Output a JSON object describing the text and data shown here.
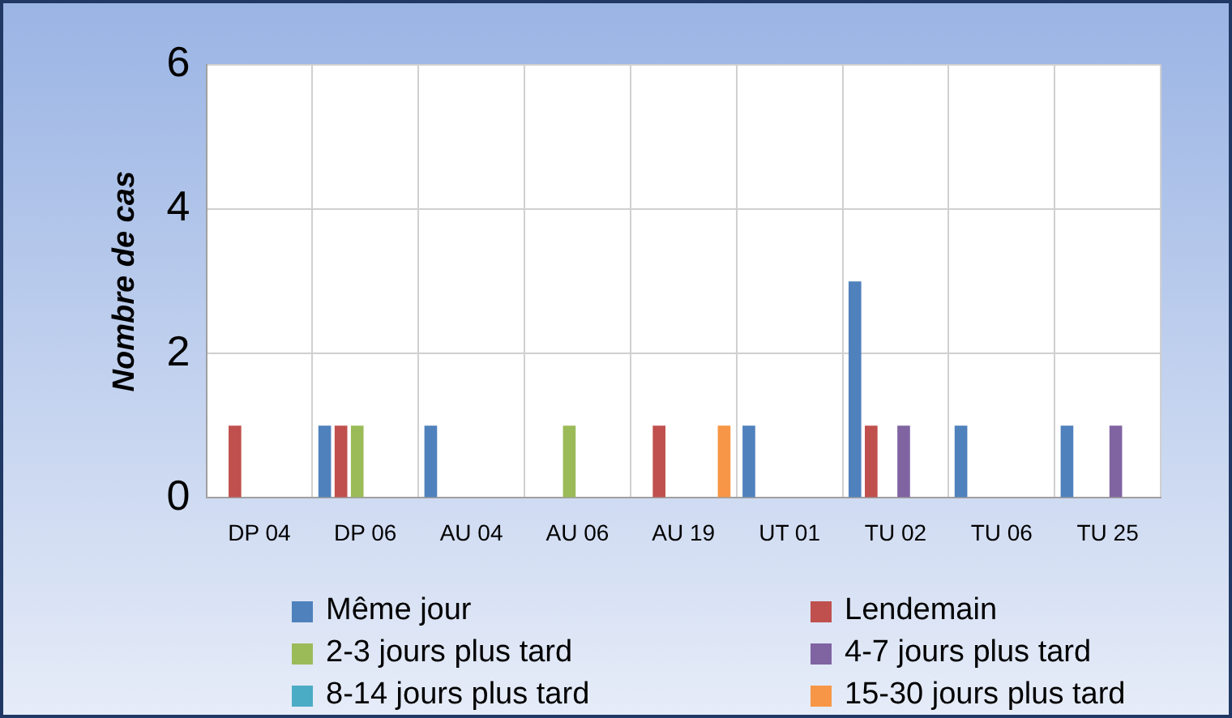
{
  "chart_data": {
    "type": "bar",
    "ylabel": "Nombre de cas",
    "categories": [
      "DP 04",
      "DP 06",
      "AU 04",
      "AU 06",
      "AU 19",
      "UT 01",
      "TU 02",
      "TU 06",
      "TU 25"
    ],
    "series": [
      {
        "name": "Même jour",
        "color": "#4f81bd",
        "values": [
          0,
          1,
          1,
          0,
          0,
          1,
          3,
          1,
          1
        ]
      },
      {
        "name": "Lendemain",
        "color": "#c0504d",
        "values": [
          1,
          1,
          0,
          0,
          1,
          0,
          1,
          0,
          0
        ]
      },
      {
        "name": "2-3 jours plus tard",
        "color": "#9bbb59",
        "values": [
          0,
          1,
          0,
          1,
          0,
          0,
          0,
          0,
          0
        ]
      },
      {
        "name": "4-7 jours plus tard",
        "color": "#8064a2",
        "values": [
          0,
          0,
          0,
          0,
          0,
          0,
          1,
          0,
          1
        ]
      },
      {
        "name": "8-14 jours plus tard",
        "color": "#4bacc6",
        "values": [
          0,
          0,
          0,
          0,
          0,
          0,
          0,
          0,
          0
        ]
      },
      {
        "name": "15-30 jours plus tard",
        "color": "#f79646",
        "values": [
          0,
          0,
          0,
          0,
          1,
          0,
          0,
          0,
          0
        ]
      }
    ],
    "ylim": [
      0,
      6
    ],
    "yticks": [
      0,
      2,
      4,
      6
    ],
    "grid": true,
    "legend": "bottom"
  }
}
